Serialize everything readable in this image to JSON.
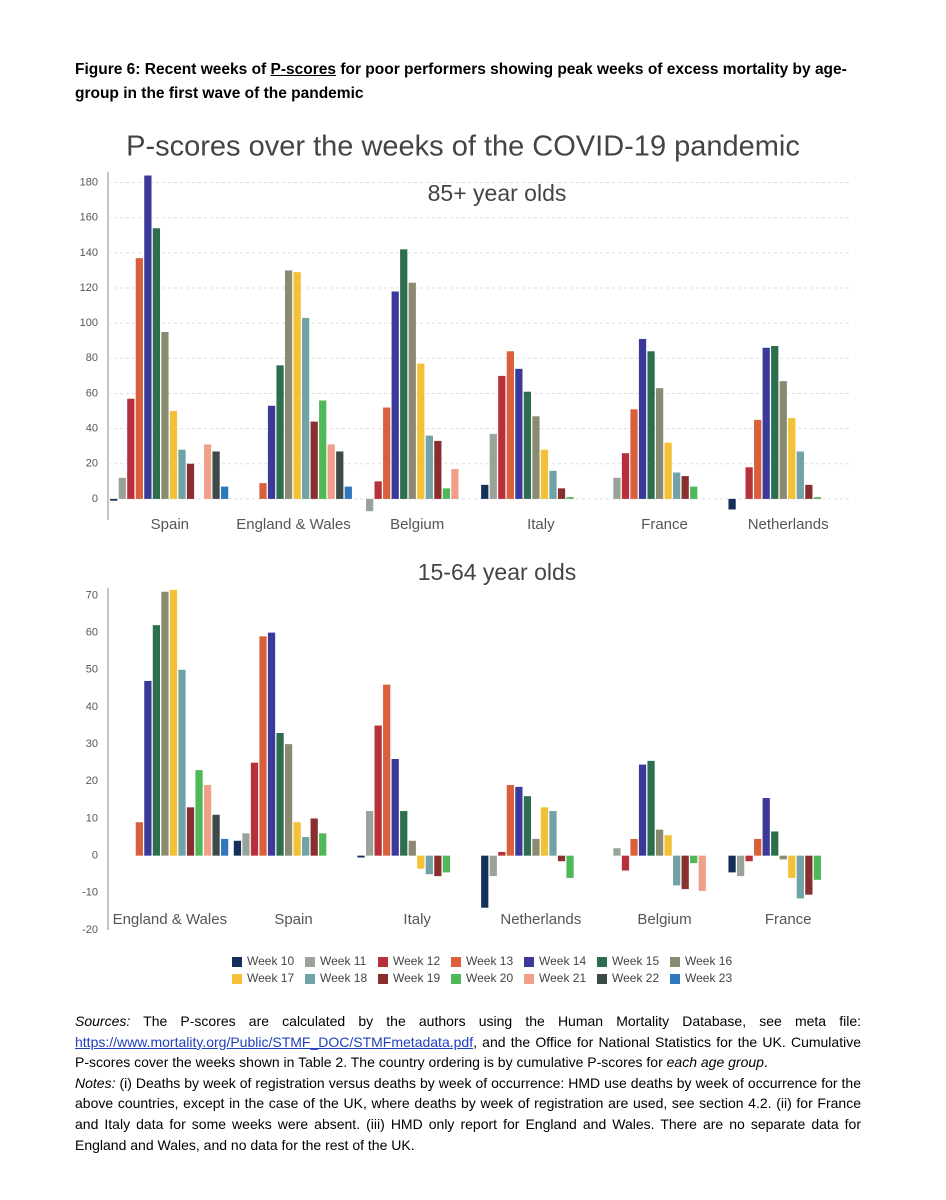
{
  "caption": {
    "prefix": "Figure 6: Recent weeks of ",
    "underlined": "P-scores",
    "suffix": " for poor performers showing peak weeks of excess mortality by age-group in the first wave of the pandemic"
  },
  "legend": [
    {
      "name": "Week 10",
      "color": "#13305a"
    },
    {
      "name": "Week 11",
      "color": "#9aa39a"
    },
    {
      "name": "Week 12",
      "color": "#b8303a"
    },
    {
      "name": "Week 13",
      "color": "#d9603a"
    },
    {
      "name": "Week 14",
      "color": "#3b3a9a"
    },
    {
      "name": "Week 15",
      "color": "#2c6e4e"
    },
    {
      "name": "Week 16",
      "color": "#8a8a70"
    },
    {
      "name": "Week 17",
      "color": "#f2c136"
    },
    {
      "name": "Week 18",
      "color": "#6fa3a6"
    },
    {
      "name": "Week 19",
      "color": "#8a2f30"
    },
    {
      "name": "Week 20",
      "color": "#4fb858"
    },
    {
      "name": "Week 21",
      "color": "#f0a088"
    },
    {
      "name": "Week 22",
      "color": "#3d4a48"
    },
    {
      "name": "Week 23",
      "color": "#2f78c0"
    }
  ],
  "chart_data": [
    {
      "type": "bar",
      "title": "P-scores over the weeks of the COVID-19 pandemic",
      "subtitle": "85+ year olds",
      "categories": [
        "Spain",
        "England & Wales",
        "Belgium",
        "Italy",
        "France",
        "Netherlands"
      ],
      "series": [
        {
          "values": [
            -1,
            null,
            null,
            8,
            null,
            -6
          ]
        },
        {
          "values": [
            12,
            null,
            -7,
            37,
            12,
            null
          ]
        },
        {
          "values": [
            57,
            null,
            10,
            70,
            26,
            18
          ]
        },
        {
          "values": [
            137,
            9,
            52,
            84,
            51,
            45
          ]
        },
        {
          "values": [
            184,
            53,
            118,
            74,
            91,
            86
          ]
        },
        {
          "values": [
            154,
            76,
            142,
            61,
            84,
            87
          ]
        },
        {
          "values": [
            95,
            130,
            123,
            47,
            63,
            67
          ]
        },
        {
          "values": [
            50,
            129,
            77,
            28,
            32,
            46
          ]
        },
        {
          "values": [
            28,
            103,
            36,
            16,
            15,
            27
          ]
        },
        {
          "values": [
            20,
            44,
            33,
            6,
            13,
            8
          ]
        },
        {
          "values": [
            null,
            56,
            6,
            1,
            7,
            1
          ]
        },
        {
          "values": [
            31,
            31,
            17,
            null,
            null,
            null
          ]
        },
        {
          "values": [
            27,
            27,
            null,
            null,
            null,
            null
          ]
        },
        {
          "values": [
            7,
            7,
            null,
            null,
            null,
            null
          ]
        }
      ],
      "ylim": [
        -12,
        186
      ],
      "yticks": [
        0,
        20,
        40,
        60,
        80,
        100,
        120,
        140,
        160,
        180
      ],
      "grid": true
    },
    {
      "type": "bar",
      "subtitle": "15-64 year olds",
      "categories": [
        "England & Wales",
        "Spain",
        "Italy",
        "Netherlands",
        "Belgium",
        "France"
      ],
      "series": [
        {
          "values": [
            null,
            4,
            -0.5,
            -14,
            null,
            -4.5
          ]
        },
        {
          "values": [
            null,
            6,
            12,
            -5.5,
            2,
            -5.5
          ]
        },
        {
          "values": [
            null,
            25,
            35,
            1,
            -4,
            -1.5
          ]
        },
        {
          "values": [
            9,
            59,
            46,
            19,
            4.5,
            4.5
          ]
        },
        {
          "values": [
            47,
            60,
            26,
            18.5,
            24.5,
            15.5
          ]
        },
        {
          "values": [
            62,
            33,
            12,
            16,
            25.5,
            6.5
          ]
        },
        {
          "values": [
            71,
            30,
            4,
            4.5,
            7,
            -1
          ]
        },
        {
          "values": [
            71.5,
            9,
            -3.5,
            13,
            5.5,
            -6
          ]
        },
        {
          "values": [
            50,
            5,
            -5,
            12,
            -8,
            -11.5
          ]
        },
        {
          "values": [
            13,
            10,
            -5.5,
            -1.5,
            -9,
            -10.5
          ]
        },
        {
          "values": [
            23,
            6,
            -4.5,
            -6,
            -2,
            -6.5
          ]
        },
        {
          "values": [
            19,
            null,
            null,
            null,
            -9.5,
            null
          ]
        },
        {
          "values": [
            11,
            null,
            null,
            null,
            null,
            null
          ]
        },
        {
          "values": [
            4.5,
            null,
            null,
            null,
            null,
            null
          ]
        }
      ],
      "ylim": [
        -20,
        72
      ],
      "yticks": [
        -20,
        -10,
        0,
        10,
        20,
        30,
        40,
        50,
        60,
        70
      ],
      "grid": false
    }
  ],
  "sources": {
    "label": "Sources:",
    "text1": " The P-scores are calculated by the authors using the Human Mortality Database, see meta file: ",
    "link": "https://www.mortality.org/Public/STMF_DOC/STMFmetadata.pdf",
    "text2": ", and the Office for National Statistics for the UK. Cumulative P-scores cover the weeks shown in Table 2. The country ordering is by cumulative P-scores for ",
    "emphasis": "each age group",
    "text3": "."
  },
  "notes": {
    "label": "Notes:",
    "text": " (i) Deaths by week of registration versus deaths by week of occurrence:  HMD use deaths by week of occurrence for the above countries, except in the case of the UK, where deaths by week of registration are used, see section 4.2. (ii) for France and Italy data for some weeks were absent. (iii) HMD only report for England and Wales. There are no separate data for England and Wales, and no data for the rest of the UK."
  }
}
